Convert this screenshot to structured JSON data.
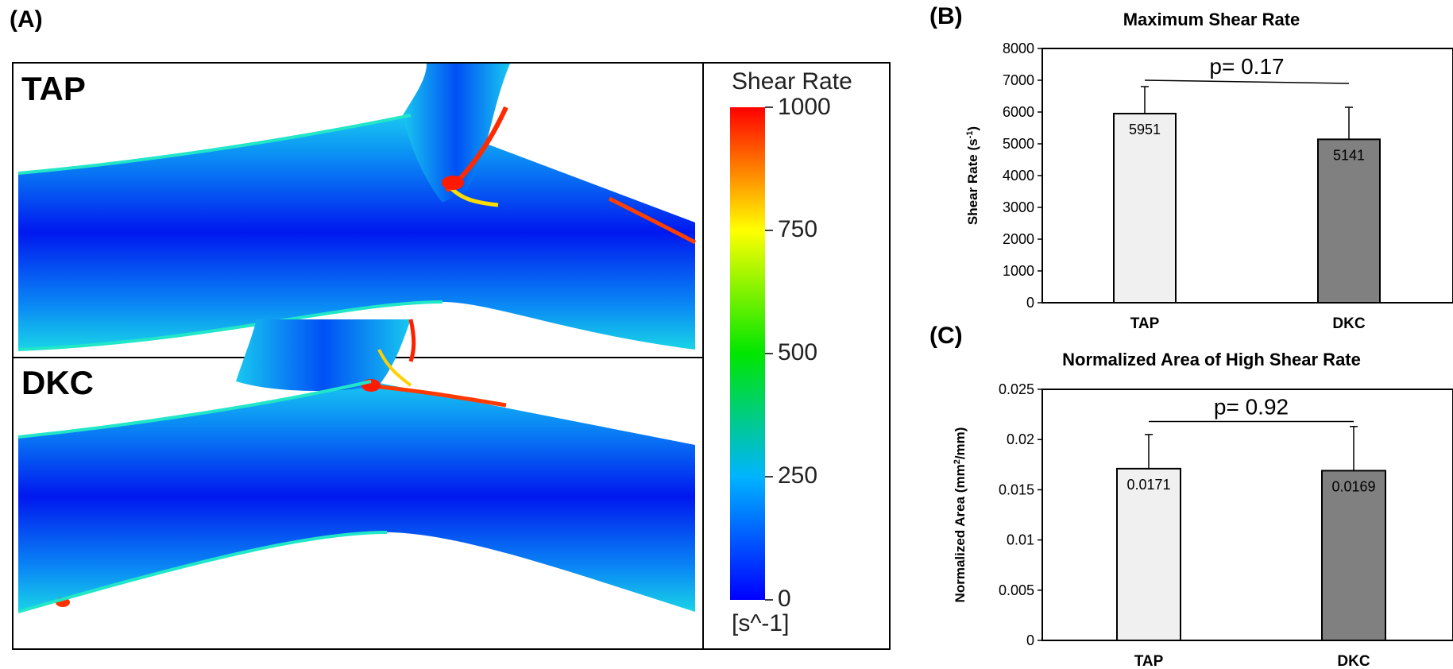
{
  "panels": {
    "a": "(A)",
    "b": "(B)",
    "c": "(C)"
  },
  "simulation": {
    "top_label": "TAP",
    "bottom_label": "DKC",
    "colorbar": {
      "title": "Shear Rate",
      "unit": "[s^-1]",
      "ticks": [
        "1000",
        "750",
        "500",
        "250",
        "0"
      ],
      "min": 0,
      "max": 1000,
      "colors": [
        "#0000ff",
        "#00b4ff",
        "#00e600",
        "#ffff00",
        "#ff0000"
      ]
    }
  },
  "chart_data": [
    {
      "type": "bar",
      "title": "Maximum Shear Rate",
      "ylabel_main": "Shear Rate (s",
      "ylabel_sup": "-1",
      "ylabel_end": ")",
      "categories": [
        "TAP",
        "DKC"
      ],
      "values": [
        5951,
        5141
      ],
      "value_labels": [
        "5951",
        "5141"
      ],
      "error_upper": [
        6800,
        6150
      ],
      "ylim": [
        0,
        8000
      ],
      "ticks": [
        0,
        1000,
        2000,
        3000,
        4000,
        5000,
        6000,
        7000,
        8000
      ],
      "tick_labels": [
        "0",
        "1000",
        "2000",
        "3000",
        "4000",
        "5000",
        "6000",
        "7000",
        "8000"
      ],
      "bar_colors": [
        "#f0f0f0",
        "#808080"
      ],
      "significance": {
        "text": "p= 0.17",
        "left_y": 7000,
        "right_y": 6900,
        "text_y": 7200
      }
    },
    {
      "type": "bar",
      "title": "Normalized Area of High Shear Rate",
      "ylabel_main": "Normalized Area (mm",
      "ylabel_sup": "2",
      "ylabel_end": "/mm)",
      "categories": [
        "TAP",
        "DKC"
      ],
      "values": [
        0.0171,
        0.0169
      ],
      "value_labels": [
        "0.0171",
        "0.0169"
      ],
      "error_upper": [
        0.0205,
        0.0213
      ],
      "ylim": [
        0,
        0.025
      ],
      "ticks": [
        0,
        0.005,
        0.01,
        0.015,
        0.02,
        0.025
      ],
      "tick_labels": [
        "0",
        "0.005",
        "0.01",
        "0.015",
        "0.02",
        "0.025"
      ],
      "bar_colors": [
        "#f0f0f0",
        "#808080"
      ],
      "significance": {
        "text": "p= 0.92",
        "left_y": 0.0218,
        "right_y": 0.0218,
        "text_y": 0.0225
      }
    }
  ]
}
